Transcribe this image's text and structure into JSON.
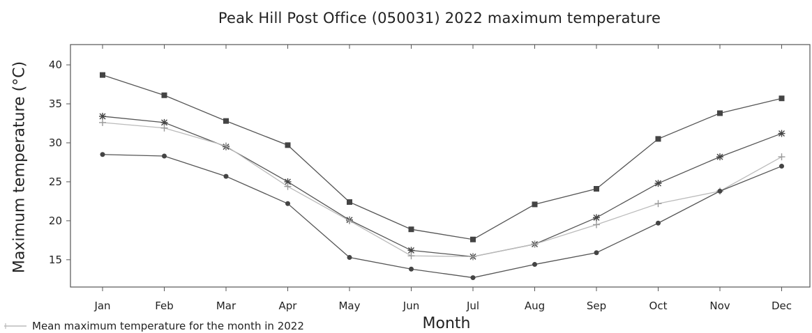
{
  "chart_data": {
    "type": "line",
    "title": "Peak Hill Post Office (050031) 2022 maximum temperature",
    "xlabel": "Month",
    "ylabel": "Maximum temperature (°C)",
    "categories": [
      "Jan",
      "Feb",
      "Mar",
      "Apr",
      "May",
      "Jun",
      "Jul",
      "Aug",
      "Sep",
      "Oct",
      "Nov",
      "Dec"
    ],
    "ylim": [
      11.5,
      42.6
    ],
    "yticks": [
      15,
      20,
      25,
      30,
      35,
      40
    ],
    "grid": false,
    "legend": {
      "position": "bottom-left",
      "entries": [
        "Mean maximum temperature for the month in 2022"
      ]
    },
    "series": [
      {
        "marker": "square",
        "color": "#555555",
        "values": [
          38.7,
          36.1,
          32.8,
          29.7,
          22.4,
          18.9,
          17.6,
          22.1,
          24.1,
          30.5,
          33.8,
          35.7
        ]
      },
      {
        "marker": "star",
        "color": "#555555",
        "values": [
          33.4,
          32.6,
          29.5,
          25.0,
          20.1,
          16.2,
          15.4,
          17.0,
          20.4,
          24.8,
          28.2,
          31.2
        ]
      },
      {
        "name": "Mean maximum temperature for the month in 2022",
        "marker": "plus",
        "color": "#bbbbbb",
        "values": [
          32.6,
          31.9,
          29.6,
          24.4,
          20.0,
          15.5,
          15.4,
          17.0,
          19.5,
          22.2,
          23.8,
          28.2
        ]
      },
      {
        "marker": "circle",
        "color": "#555555",
        "values": [
          28.5,
          28.3,
          25.7,
          22.2,
          15.3,
          13.8,
          12.7,
          14.4,
          15.9,
          19.7,
          23.8,
          27.0
        ]
      }
    ]
  }
}
